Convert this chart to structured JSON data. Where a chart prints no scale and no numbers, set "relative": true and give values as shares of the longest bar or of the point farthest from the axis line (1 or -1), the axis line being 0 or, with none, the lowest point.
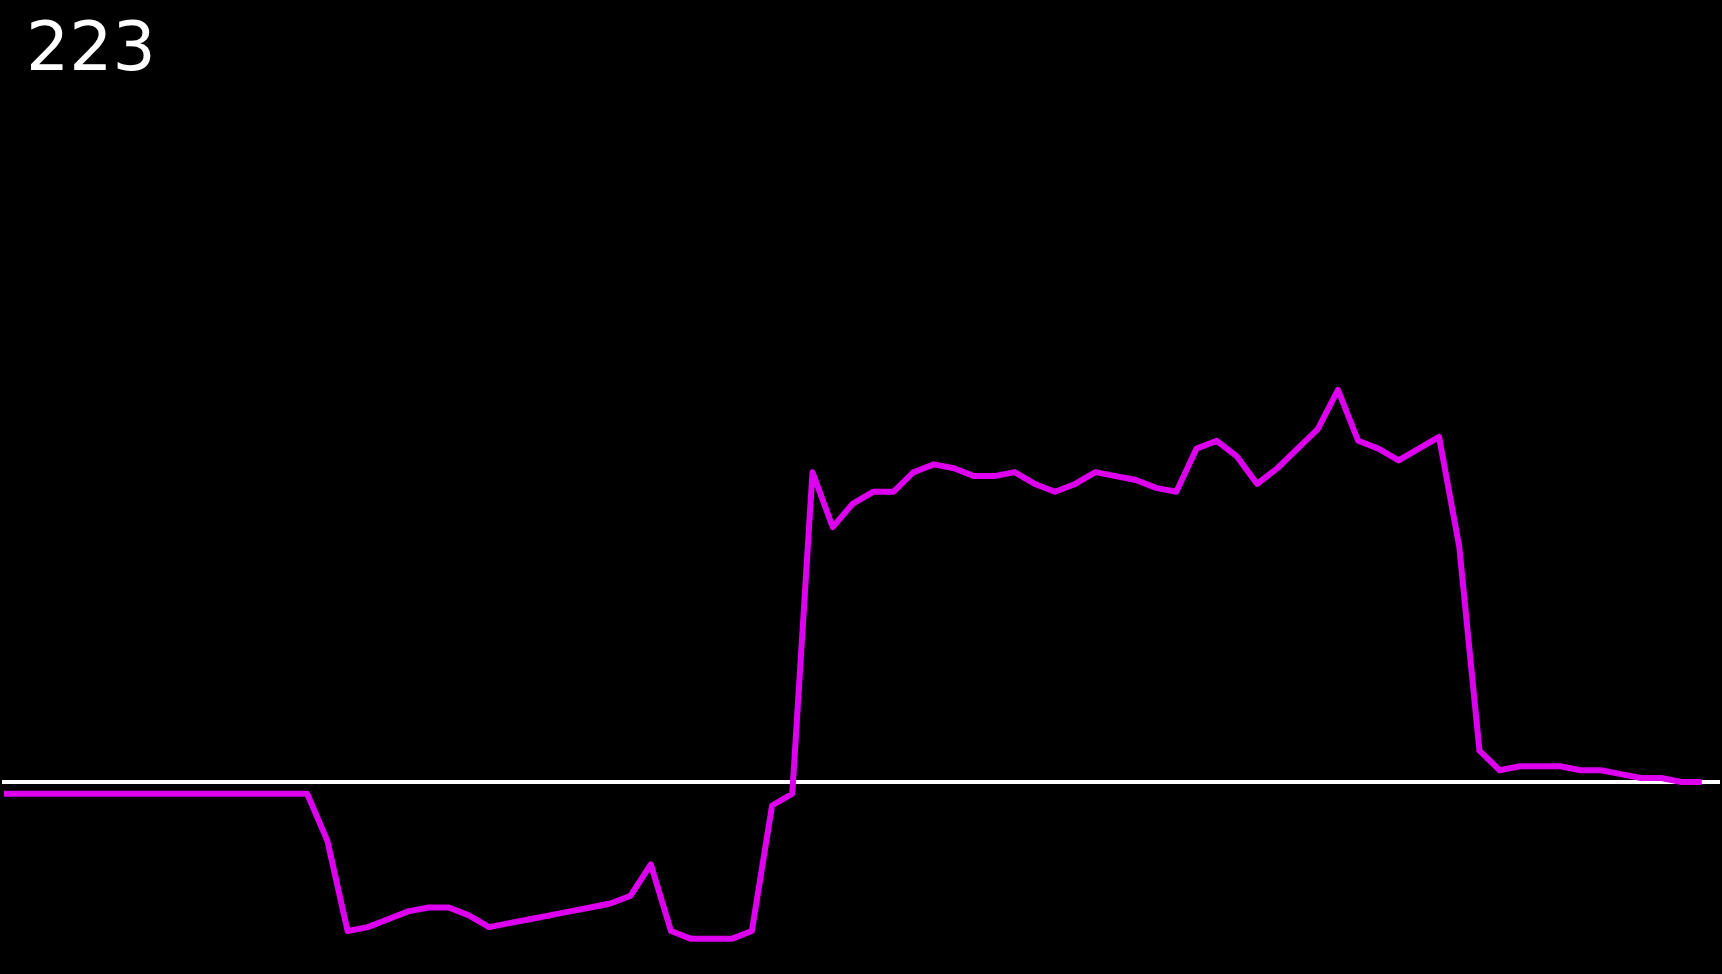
{
  "chart_data": {
    "type": "line",
    "title": "223",
    "relative": true,
    "grid": false,
    "marker": "none",
    "line_style": "solid",
    "categories": [
      null,
      null,
      null,
      null,
      null,
      null,
      null,
      null,
      null,
      null,
      null,
      null,
      null,
      null,
      null,
      null,
      null,
      null,
      null,
      null,
      null,
      null,
      null,
      null,
      null,
      null,
      null,
      null,
      null,
      null,
      null,
      null,
      null,
      null,
      null,
      null,
      null,
      null,
      null,
      null,
      null,
      null,
      null,
      null,
      null,
      null,
      null,
      null,
      null,
      null,
      null,
      null,
      null,
      null,
      null,
      null,
      null,
      null,
      null,
      null,
      null,
      null,
      null,
      null,
      null,
      null,
      null,
      null,
      null,
      null,
      null,
      null,
      null,
      null,
      null,
      null,
      null,
      null,
      null,
      null,
      null,
      null,
      null,
      null,
      null
    ],
    "series": [
      {
        "color": "#dd00ee",
        "values": [
          -0.03,
          -0.03,
          -0.03,
          -0.03,
          -0.03,
          -0.03,
          -0.03,
          -0.03,
          -0.03,
          -0.03,
          -0.03,
          -0.03,
          -0.03,
          -0.03,
          -0.03,
          -0.03,
          -0.15,
          -0.38,
          -0.37,
          -0.35,
          -0.33,
          -0.32,
          -0.32,
          -0.34,
          -0.37,
          -0.36,
          -0.35,
          -0.34,
          -0.33,
          -0.32,
          -0.31,
          -0.29,
          -0.21,
          -0.38,
          -0.4,
          -0.4,
          -0.4,
          -0.38,
          -0.06,
          -0.03,
          0.79,
          0.65,
          0.71,
          0.74,
          0.74,
          0.79,
          0.81,
          0.8,
          0.78,
          0.78,
          0.79,
          0.76,
          0.74,
          0.76,
          0.79,
          0.78,
          0.77,
          0.75,
          0.74,
          0.85,
          0.87,
          0.83,
          0.76,
          0.8,
          0.85,
          0.9,
          1.0,
          0.87,
          0.85,
          0.82,
          0.85,
          0.88,
          0.6,
          0.08,
          0.03,
          0.04,
          0.04,
          0.04,
          0.03,
          0.03,
          0.02,
          0.01,
          0.01,
          0.0,
          0.0
        ]
      }
    ]
  }
}
